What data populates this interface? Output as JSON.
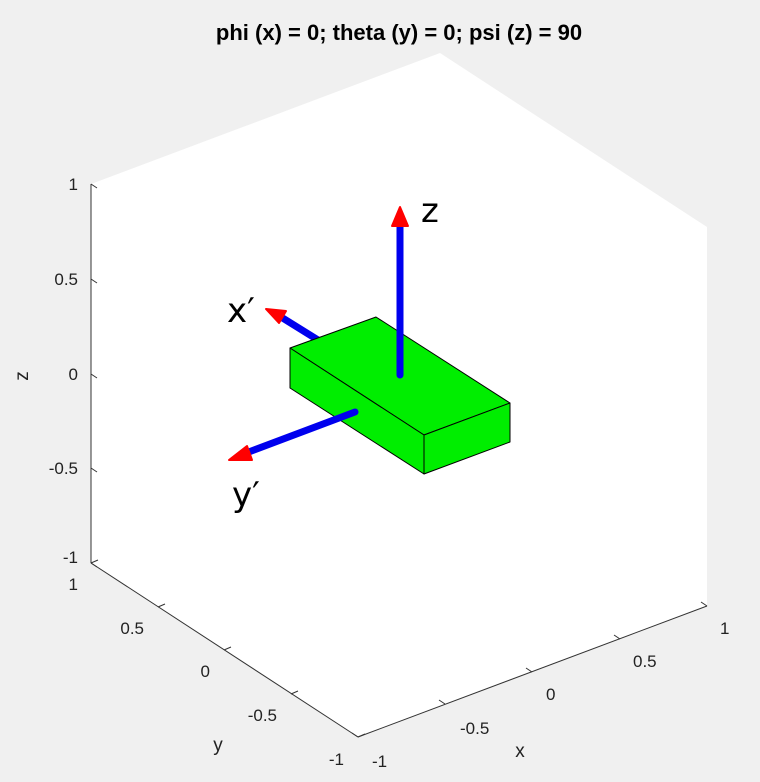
{
  "figure": {
    "title": "phi (x) = 0; theta (y) = 0; psi (z) = 90",
    "colors": {
      "background": "#f0f0f0",
      "axes_face": "#ffffff",
      "box_face": "#00ee00",
      "vector_shaft": "#0000ee",
      "vector_head": "#ff0000"
    }
  },
  "axes": {
    "xlabel": "x",
    "ylabel": "y",
    "zlabel": "z",
    "xlim": [
      -1,
      1
    ],
    "ylim": [
      -1,
      1
    ],
    "zlim": [
      -1,
      1
    ],
    "x_ticks": [
      "-1",
      "-0.5",
      "0",
      "0.5",
      "1"
    ],
    "y_ticks": [
      "-1",
      "-0.5",
      "0",
      "0.5",
      "1"
    ],
    "z_ticks": [
      "-1",
      "-0.5",
      "0",
      "0.5",
      "1"
    ],
    "view": "3-D isometric",
    "grid": false
  },
  "vectors": [
    {
      "label": "z",
      "direction": [
        0,
        0,
        1
      ],
      "color_shaft": "#0000ee",
      "color_head": "#ff0000"
    },
    {
      "label": "x′",
      "direction": [
        0,
        1,
        0
      ],
      "color_shaft": "#0000ee",
      "color_head": "#ff0000"
    },
    {
      "label": "y′",
      "direction": [
        -1,
        0,
        0
      ],
      "color_shaft": "#0000ee",
      "color_head": "#ff0000"
    }
  ],
  "body": {
    "shape": "rectangular box",
    "color": "#00ee00"
  }
}
